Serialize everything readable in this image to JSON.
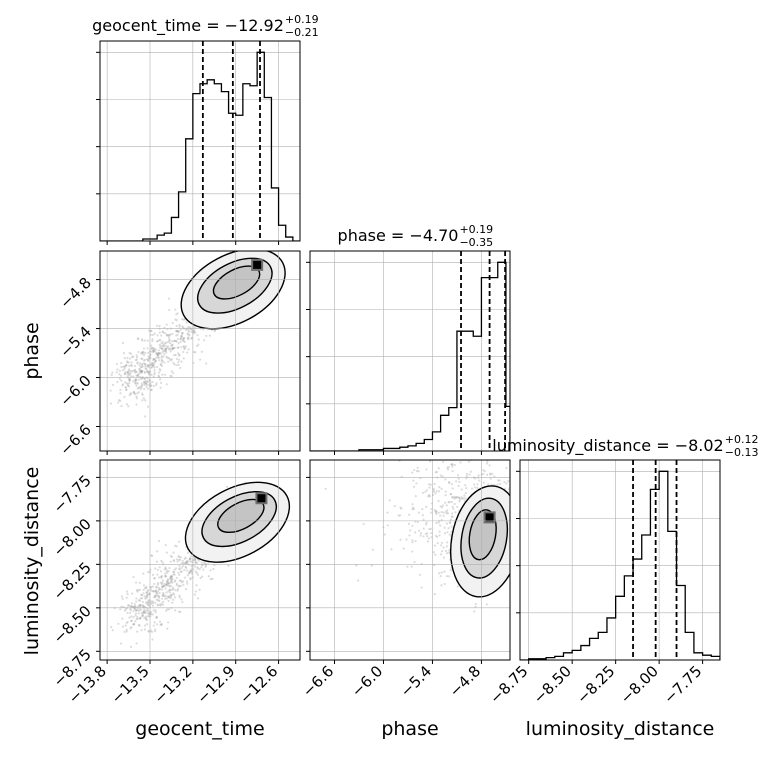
{
  "chart_data": {
    "type": "corner",
    "parameters": [
      "geocent_time",
      "phase",
      "luminosity_distance"
    ],
    "summaries": [
      {
        "param": "geocent_time",
        "label_lhs": "geocent_time = −12.92",
        "sup": "+0.19",
        "sub": "−0.21",
        "median": -12.92,
        "q16": -13.13,
        "q84": -12.73
      },
      {
        "param": "phase",
        "label_lhs": "phase = −4.70",
        "sup": "+0.19",
        "sub": "−0.35",
        "median": -4.7,
        "q16": -5.05,
        "q84": -4.51
      },
      {
        "param": "luminosity_distance",
        "label_lhs": "luminosity_distance = −8.02",
        "sup": "+0.12",
        "sub": "−0.13",
        "median": -8.02,
        "q16": -8.15,
        "q84": -7.9
      }
    ],
    "axes": {
      "geocent_time": {
        "label": "geocent_time",
        "range": [
          -13.85,
          -12.45
        ],
        "ticks": [
          -13.8,
          -13.5,
          -13.2,
          -12.9,
          -12.6
        ],
        "tick_labels": [
          "−13.8",
          "−13.5",
          "−13.2",
          "−12.9",
          "−12.6"
        ]
      },
      "phase": {
        "label": "phase",
        "range": [
          -6.9,
          -4.45
        ],
        "ticks": [
          -6.6,
          -6.0,
          -5.4,
          -4.8
        ],
        "tick_labels": [
          "−6.6",
          "−6.0",
          "−5.4",
          "−4.8"
        ]
      },
      "luminosity_distance": {
        "label": "luminosity_distance",
        "range": [
          -8.8,
          -7.65
        ],
        "ticks": [
          -8.75,
          -8.5,
          -8.25,
          -8.0,
          -7.75
        ],
        "tick_labels": [
          "−8.75",
          "−8.50",
          "−8.25",
          "−8.00",
          "−7.75"
        ]
      }
    },
    "histograms": {
      "geocent_time": {
        "edges": [
          -13.85,
          -13.8,
          -13.75,
          -13.7,
          -13.65,
          -13.6,
          -13.55,
          -13.5,
          -13.45,
          -13.4,
          -13.35,
          -13.3,
          -13.25,
          -13.2,
          -13.15,
          -13.1,
          -13.05,
          -13.0,
          -12.95,
          -12.9,
          -12.85,
          -12.8,
          -12.75,
          -12.7,
          -12.65,
          -12.6,
          -12.55,
          -12.5,
          -12.45
        ],
        "counts": [
          0,
          0,
          0,
          0,
          0,
          0,
          1,
          1,
          3,
          4,
          12,
          25,
          52,
          75,
          80,
          82,
          80,
          76,
          65,
          64,
          80,
          79,
          96,
          73,
          27,
          8,
          2,
          0
        ]
      },
      "phase": {
        "edges": [
          -6.9,
          -6.8,
          -6.7,
          -6.6,
          -6.5,
          -6.4,
          -6.3,
          -6.2,
          -6.1,
          -6.0,
          -5.9,
          -5.8,
          -5.7,
          -5.6,
          -5.5,
          -5.4,
          -5.3,
          -5.2,
          -5.1,
          -5.0,
          -4.9,
          -4.8,
          -4.7,
          -4.6,
          -4.5,
          -4.45
        ],
        "counts": [
          0,
          0,
          0,
          0,
          0,
          0,
          1,
          1,
          1,
          2,
          2,
          3,
          4,
          6,
          9,
          15,
          28,
          34,
          94,
          94,
          90,
          136,
          136,
          148,
          35
        ]
      },
      "luminosity_distance": {
        "edges": [
          -8.8,
          -8.75,
          -8.7,
          -8.65,
          -8.6,
          -8.55,
          -8.5,
          -8.45,
          -8.4,
          -8.35,
          -8.3,
          -8.25,
          -8.2,
          -8.15,
          -8.1,
          -8.05,
          -8.0,
          -7.95,
          -7.9,
          -7.85,
          -7.8,
          -7.75,
          -7.7,
          -7.65
        ],
        "counts": [
          0,
          1,
          1,
          2,
          3,
          6,
          8,
          12,
          18,
          23,
          35,
          53,
          70,
          84,
          104,
          142,
          157,
          107,
          62,
          23,
          6,
          4,
          3
        ]
      }
    },
    "pairs": [
      {
        "x": "geocent_time",
        "y": "phase",
        "trend": "positive",
        "mode": [
          -12.75,
          -4.62
        ]
      },
      {
        "x": "geocent_time",
        "y": "luminosity_distance",
        "trend": "positive",
        "mode": [
          -12.72,
          -7.87
        ]
      },
      {
        "x": "phase",
        "y": "luminosity_distance",
        "trend": "none",
        "mode": [
          -4.7,
          -7.98
        ]
      }
    ],
    "contour_levels": [
      "0.5",
      "1",
      "1.5",
      "2 sigma"
    ],
    "grid": true,
    "colors": {
      "hist": "#000000",
      "quantile_line": "#000000",
      "scatter": "#9a9a9a",
      "grid": "#b0b0b0",
      "fill_light": "#f2f2f2",
      "fill_mid": "#c4c4c4",
      "fill_dark": "#6e6e6e"
    }
  }
}
